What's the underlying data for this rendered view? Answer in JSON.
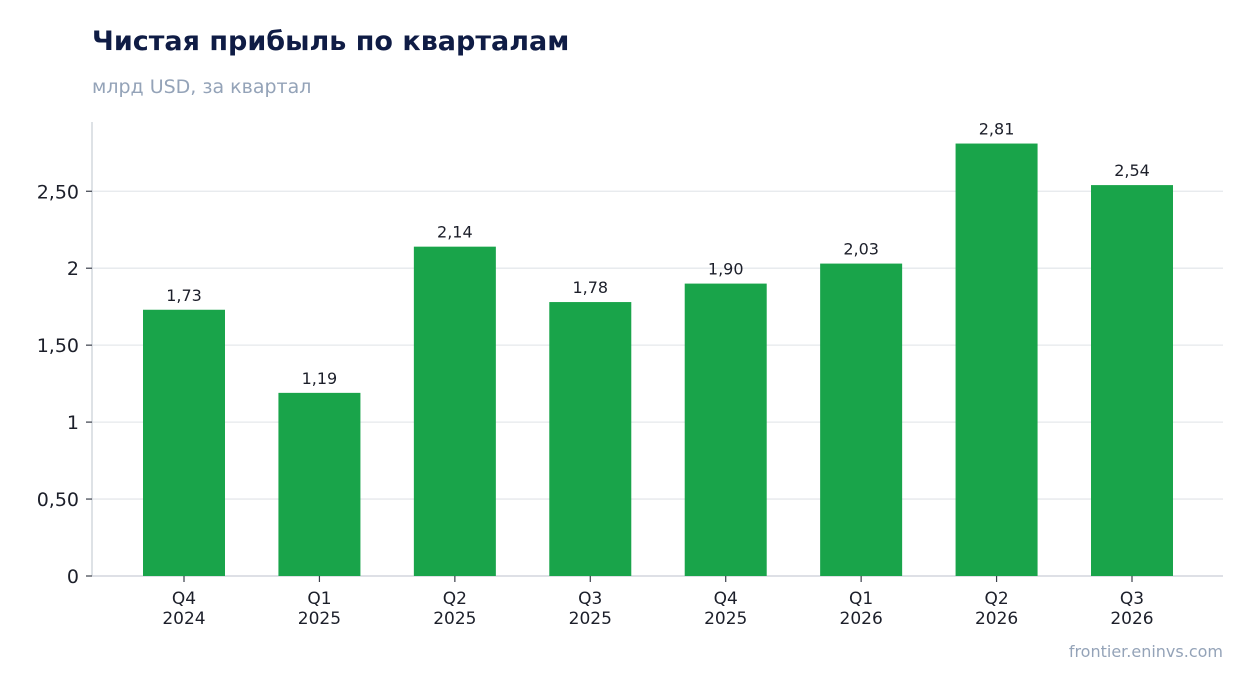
{
  "chart_data": {
    "type": "bar",
    "title": "Чистая прибыль по кварталам",
    "subtitle": "млрд USD, за квартал",
    "categories": [
      [
        "Q4",
        "2024"
      ],
      [
        "Q1",
        "2025"
      ],
      [
        "Q2",
        "2025"
      ],
      [
        "Q3",
        "2025"
      ],
      [
        "Q4",
        "2025"
      ],
      [
        "Q1",
        "2026"
      ],
      [
        "Q2",
        "2026"
      ],
      [
        "Q3",
        "2026"
      ]
    ],
    "values": [
      1.73,
      1.19,
      2.14,
      1.78,
      1.9,
      2.03,
      2.81,
      2.54
    ],
    "value_labels": [
      "1,73",
      "1,19",
      "2,14",
      "1,78",
      "1,90",
      "2,03",
      "2,81",
      "2,54"
    ],
    "y_ticks": [
      0,
      0.5,
      1,
      1.5,
      2,
      2.5
    ],
    "y_tick_labels": [
      "0",
      "0,50",
      "1",
      "1,50",
      "2",
      "2,50"
    ],
    "ylim": [
      0,
      2.95
    ],
    "grid": true,
    "legend": "none",
    "xlabel": "",
    "ylabel": ""
  },
  "source": "frontier.eninvs.com",
  "colors": {
    "bar": "#19a44a",
    "grid": "#e5e8ec",
    "axis": "#c9ced6",
    "text": "#1c1f2a",
    "title": "#0f1c45",
    "muted": "#94a3b8"
  }
}
